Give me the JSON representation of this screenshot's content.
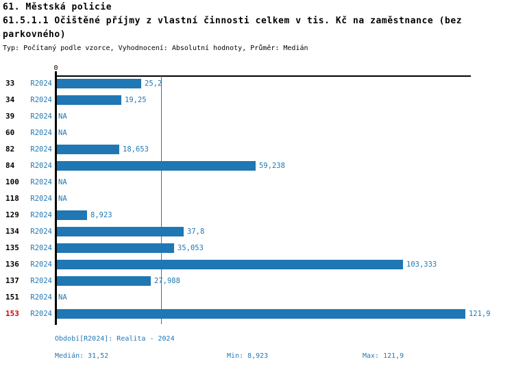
{
  "header": {
    "title_line1": "61. Městská policie",
    "title_line2": "61.5.1.1 Očištěné příjmy z vlastní činnosti celkem v tis. Kč na zaměstnance (bez",
    "title_line3": "parkovného)",
    "subtitle": "Typ: Počítaný podle vzorce, Vyhodnocení: Absolutní hodnoty, Průměr: Medián"
  },
  "chart_data": {
    "type": "bar",
    "orientation": "horizontal",
    "title": "61.5.1.1 Očištěné příjmy z vlastní činnosti celkem v tis. Kč na zaměstnance (bez parkovného)",
    "zero_tick_label": "0",
    "period": "R2024",
    "categories": [
      "33",
      "34",
      "39",
      "60",
      "82",
      "84",
      "100",
      "118",
      "129",
      "134",
      "135",
      "136",
      "137",
      "151",
      "153"
    ],
    "values": [
      25.2,
      19.25,
      null,
      null,
      18.653,
      59.238,
      null,
      null,
      8.923,
      37.8,
      35.053,
      103.333,
      27.988,
      null,
      121.9
    ],
    "value_labels": [
      "25,2",
      "19,25",
      "NA",
      "NA",
      "18,653",
      "59,238",
      "NA",
      "NA",
      "8,923",
      "37,8",
      "35,053",
      "103,333",
      "27,988",
      "NA",
      "121,9"
    ],
    "na_label": "NA",
    "highlighted_category": "153",
    "median": 31.52,
    "min": 8.923,
    "max": 121.9,
    "xlim": [
      0,
      123.6
    ],
    "grid": false,
    "legend": "none",
    "colors": {
      "bar": "#1f77b4",
      "blue_text": "#1f77b4",
      "highlight": "#cc0000",
      "axis": "#000000"
    }
  },
  "footer": {
    "period_note": "Období[R2024]: Realita - 2024",
    "median_label": "Medián: 31,52",
    "min_label": "Min: 8,923",
    "max_label": "Max: 121,9"
  }
}
